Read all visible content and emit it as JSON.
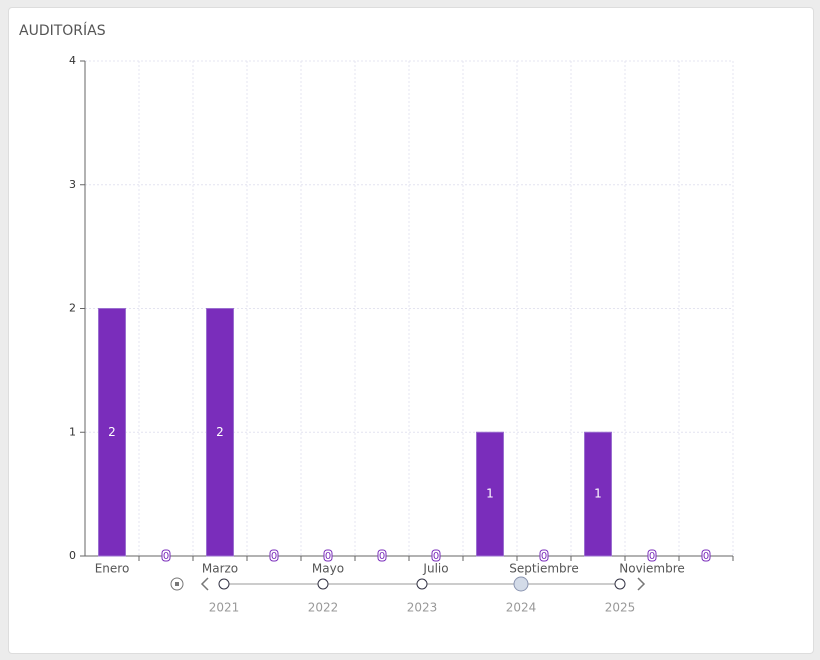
{
  "chart_data": {
    "type": "bar",
    "title": "AUDITORÍAS",
    "categories": [
      "Enero",
      null,
      "Marzo",
      null,
      "Mayo",
      null,
      "Julio",
      null,
      "Septiembre",
      null,
      "Noviembre",
      null
    ],
    "values": [
      2,
      0,
      2,
      0,
      0,
      0,
      0,
      1,
      0,
      1,
      0,
      0
    ],
    "color": "#7a2dbb",
    "ylim": [
      0,
      4
    ],
    "yticks": [
      0,
      1,
      2,
      3,
      4
    ],
    "grid": true,
    "timeline": {
      "years": [
        "2021",
        "2022",
        "2023",
        "2024",
        "2025"
      ],
      "selected": "2024"
    }
  }
}
